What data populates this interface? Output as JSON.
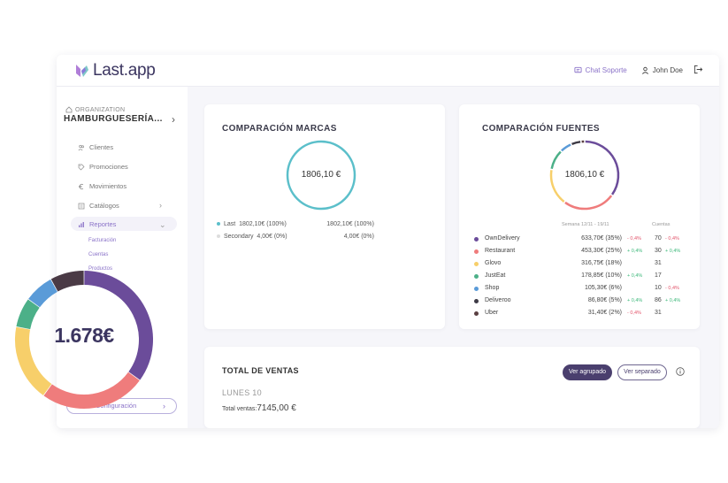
{
  "app": {
    "logo_text": "Last.app",
    "chat_support": "Chat Soporte",
    "user_name": "John Doe"
  },
  "sidebar": {
    "org_label": "ORGANIZATION",
    "org_name": "HAMBURGUESERÍA...",
    "items": [
      {
        "label": "Clientes",
        "icon": "users-icon"
      },
      {
        "label": "Promociones",
        "icon": "tag-icon"
      },
      {
        "label": "Movimientos",
        "icon": "euro-icon"
      },
      {
        "label": "Catálogos",
        "icon": "catalog-icon"
      },
      {
        "label": "Reportes",
        "icon": "chart-icon"
      }
    ],
    "sub_items": [
      "Facturación",
      "Cuentas",
      "Productos"
    ],
    "config_label": "Configuración"
  },
  "brands": {
    "title": "COMPARACIÓN MARCAS",
    "total": "1806,10 €",
    "rows": [
      {
        "label": "Last",
        "value": "1802,10€ (100%)",
        "value2": "1802,10€ (100%)",
        "color": "#5bbfca"
      },
      {
        "label": "Secondary",
        "value": "4,00€ (0%)",
        "value2": "4,00€ (0%)",
        "color": "#dddddd"
      }
    ]
  },
  "sources": {
    "title": "COMPARACIÓN FUENTES",
    "total": "1806,10 €",
    "head_week": "Semana 12/11 - 19/11",
    "head_count": "Cuentas",
    "rows": [
      {
        "name": "OwnDelivery",
        "amount": "633,70€ (35%)",
        "delta": "- 0,4%",
        "delta_dir": "neg",
        "count": "70",
        "count_delta": "- 0,4%",
        "count_dir": "neg",
        "color": "#6b4c9a"
      },
      {
        "name": "Restaurant",
        "amount": "453,30€ (25%)",
        "delta": "+ 0,4%",
        "delta_dir": "pos",
        "count": "30",
        "count_delta": "+ 0,4%",
        "count_dir": "pos",
        "color": "#ef7c7c"
      },
      {
        "name": "Glovo",
        "amount": "316,75€ (18%)",
        "delta": "",
        "delta_dir": "",
        "count": "31",
        "count_delta": "",
        "count_dir": "",
        "color": "#f7cf6a"
      },
      {
        "name": "JustEat",
        "amount": "178,85€ (10%)",
        "delta": "+ 0,4%",
        "delta_dir": "pos",
        "count": "17",
        "count_delta": "",
        "count_dir": "",
        "color": "#4cb088"
      },
      {
        "name": "Shop",
        "amount": "105,30€ (6%)",
        "delta": "",
        "delta_dir": "",
        "count": "10",
        "count_delta": "- 0,4%",
        "count_dir": "neg",
        "color": "#5a9bd8"
      },
      {
        "name": "Deliveroo",
        "amount": "86,80€ (5%)",
        "delta": "+ 0,4%",
        "delta_dir": "pos",
        "count": "86",
        "count_delta": "+ 0,4%",
        "count_dir": "pos",
        "color": "#3d3a45"
      },
      {
        "name": "Uber",
        "amount": "31,40€ (2%)",
        "delta": "- 0,4%",
        "delta_dir": "neg",
        "count": "31",
        "count_delta": "",
        "count_dir": "",
        "color": "#5a4042"
      }
    ]
  },
  "sales": {
    "title": "TOTAL DE VENTAS",
    "btn_grouped": "Ver agrupado",
    "btn_separate": "Ver separado",
    "day": "LUNES 10",
    "total_label": "Total ventas:",
    "total_value": "7145,00 €"
  },
  "overlay": {
    "total": "1.678€",
    "segments": [
      {
        "color": "#6b4c9a",
        "value": 35
      },
      {
        "color": "#ef7c7c",
        "value": 25
      },
      {
        "color": "#f7cf6a",
        "value": 18
      },
      {
        "color": "#4cb088",
        "value": 7
      },
      {
        "color": "#5a9bd8",
        "value": 7
      },
      {
        "color": "#4a3a45",
        "value": 8
      }
    ]
  },
  "chart_data": {
    "type": "pie",
    "categories": [
      "OwnDelivery",
      "Restaurant",
      "Glovo",
      "JustEat",
      "Shop",
      "Deliveroo",
      "Uber"
    ],
    "values": [
      633.7,
      453.3,
      316.75,
      178.85,
      105.3,
      86.8,
      31.4
    ],
    "title": "COMPARACIÓN FUENTES"
  }
}
